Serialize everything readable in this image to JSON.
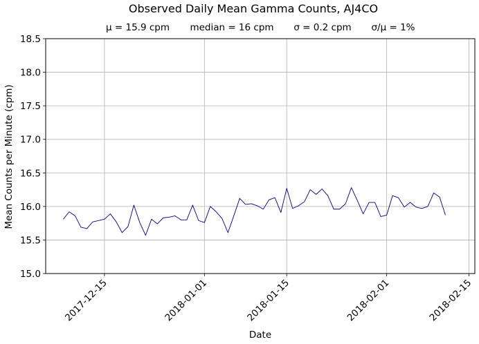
{
  "chart_data": {
    "type": "line",
    "title": "Observed Daily Mean Gamma Counts, AJ4CO",
    "stats": {
      "mean": "μ = 15.9 cpm",
      "median": "median = 16 cpm",
      "sigma": "σ = 0.2 cpm",
      "ratio": "σ/μ = 1%"
    },
    "xlabel": "Date",
    "ylabel": "Mean Counts per Minute (cpm)",
    "xlim": [
      "2017-12-05",
      "2018-02-16"
    ],
    "ylim": [
      15.0,
      18.5
    ],
    "x_ticks": [
      "2017-12-15",
      "2018-01-01",
      "2018-01-15",
      "2018-02-01",
      "2018-02-15"
    ],
    "y_ticks": [
      "15.0",
      "15.5",
      "16.0",
      "16.5",
      "17.0",
      "17.5",
      "18.0",
      "18.5"
    ],
    "grid": true,
    "series": [
      {
        "color": "#000080",
        "x": [
          "2017-12-08",
          "2017-12-09",
          "2017-12-10",
          "2017-12-11",
          "2017-12-12",
          "2017-12-13",
          "2017-12-14",
          "2017-12-15",
          "2017-12-16",
          "2017-12-17",
          "2017-12-18",
          "2017-12-19",
          "2017-12-20",
          "2017-12-21",
          "2017-12-22",
          "2017-12-23",
          "2017-12-24",
          "2017-12-25",
          "2017-12-26",
          "2017-12-27",
          "2017-12-28",
          "2017-12-29",
          "2017-12-30",
          "2017-12-31",
          "2018-01-01",
          "2018-01-02",
          "2018-01-03",
          "2018-01-04",
          "2018-01-05",
          "2018-01-06",
          "2018-01-07",
          "2018-01-08",
          "2018-01-09",
          "2018-01-10",
          "2018-01-11",
          "2018-01-12",
          "2018-01-13",
          "2018-01-14",
          "2018-01-15",
          "2018-01-16",
          "2018-01-17",
          "2018-01-18",
          "2018-01-19",
          "2018-01-20",
          "2018-01-21",
          "2018-01-22",
          "2018-01-23",
          "2018-01-24",
          "2018-01-25",
          "2018-01-26",
          "2018-01-27",
          "2018-01-28",
          "2018-01-29",
          "2018-01-30",
          "2018-01-31",
          "2018-02-01",
          "2018-02-02",
          "2018-02-03",
          "2018-02-04",
          "2018-02-05",
          "2018-02-06",
          "2018-02-07",
          "2018-02-08",
          "2018-02-09",
          "2018-02-10",
          "2018-02-11",
          "2018-02-12",
          "2018-02-13"
        ],
        "values": [
          15.81,
          15.92,
          15.86,
          15.69,
          15.67,
          15.77,
          15.79,
          15.81,
          15.89,
          15.77,
          15.61,
          15.7,
          16.02,
          15.76,
          15.57,
          15.81,
          15.74,
          15.83,
          15.84,
          15.86,
          15.8,
          15.8,
          16.02,
          15.79,
          15.76,
          16.0,
          15.92,
          15.82,
          15.61,
          15.86,
          16.12,
          16.03,
          16.04,
          16.01,
          15.96,
          16.1,
          16.13,
          15.91,
          16.27,
          15.97,
          16.01,
          16.07,
          16.25,
          16.18,
          16.26,
          16.16,
          15.96,
          15.96,
          16.04,
          16.28,
          16.09,
          15.89,
          16.06,
          16.06,
          15.85,
          15.87,
          16.16,
          16.13,
          15.99,
          16.06,
          15.99,
          15.97,
          16.0,
          16.2,
          16.14,
          15.87,
          null,
          null
        ]
      }
    ]
  }
}
